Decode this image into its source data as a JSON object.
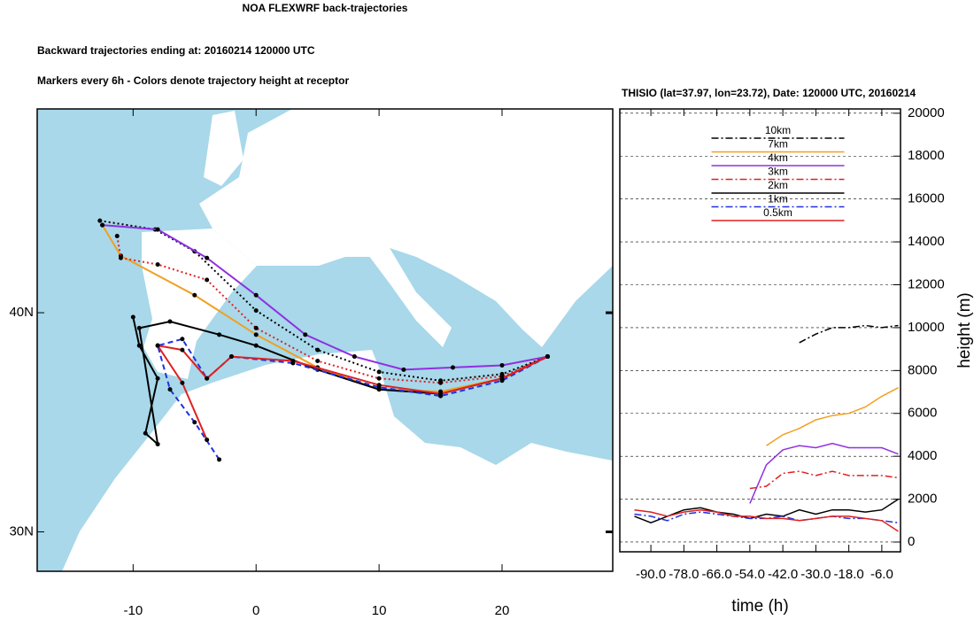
{
  "title": "NOA FLEXWRF back-trajectories",
  "subtitle": "Backward trajectories ending at: 20160214  120000 UTC",
  "note": "Markers every 6h - Colors denote trajectory height at receptor",
  "chart_data": [
    {
      "type": "trajectory-map",
      "xlim": [
        -17.8,
        29
      ],
      "ylim": [
        28.2,
        49.3
      ],
      "xticks": [
        -10,
        0,
        10,
        20
      ],
      "yticks": [
        {
          "value": 30,
          "label": "30N"
        },
        {
          "value": 40,
          "label": "40N"
        }
      ],
      "series": [
        {
          "color": "#000000",
          "dash": "dot",
          "x": [
            -12.7,
            -8.2,
            -5,
            0,
            5,
            10,
            15,
            20,
            23.7
          ],
          "values": [
            44.2,
            43.8,
            42.8,
            40.1,
            38.3,
            37.3,
            36.9,
            37.2,
            38.0
          ]
        },
        {
          "color": "#f0a020",
          "dash": "solid",
          "x": [
            -12.5,
            -11,
            -5,
            0,
            5,
            10,
            15,
            20,
            23.7
          ],
          "values": [
            44.0,
            42.6,
            40.8,
            39.0,
            37.5,
            36.5,
            36.4,
            37.0,
            38.0
          ]
        },
        {
          "color": "#9030e0",
          "dash": "solid",
          "x": [
            -12.5,
            -8,
            -4,
            0,
            4,
            8,
            12,
            16,
            20,
            23.7
          ],
          "values": [
            44.0,
            43.8,
            42.5,
            40.8,
            39.0,
            38.0,
            37.4,
            37.5,
            37.6,
            38.0
          ]
        },
        {
          "color": "#e02020",
          "dash": "dot",
          "x": [
            -11.3,
            -11,
            -8,
            -4,
            0,
            5,
            10,
            15,
            20,
            23.7
          ],
          "values": [
            43.5,
            42.5,
            42.2,
            41.5,
            39.3,
            37.8,
            37.0,
            36.8,
            37.1,
            38.0
          ]
        },
        {
          "color": "#000000",
          "dash": "solid",
          "x": [
            -10,
            -9.5,
            -8,
            -9,
            -8,
            -9.5,
            -7,
            -3,
            0,
            5,
            10,
            15,
            20,
            23.7
          ],
          "values": [
            39.8,
            38.5,
            37.0,
            34.5,
            34.0,
            39.3,
            39.6,
            39.0,
            38.5,
            37.4,
            36.5,
            36.3,
            37.0,
            38.0
          ]
        },
        {
          "color": "#2030e0",
          "dash": "dash",
          "x": [
            -3,
            -5,
            -7,
            -8,
            -6,
            -4,
            -2,
            3,
            10,
            15,
            20,
            23.7
          ],
          "values": [
            33.3,
            35.0,
            36.5,
            38.5,
            38.8,
            37.0,
            38.0,
            37.7,
            36.6,
            36.2,
            36.9,
            38.0
          ]
        },
        {
          "color": "#e02020",
          "dash": "solid",
          "x": [
            -4,
            -6,
            -8,
            -6,
            -4,
            -2,
            3,
            10,
            15,
            20,
            23.7
          ],
          "values": [
            34.2,
            36.8,
            38.5,
            38.3,
            37.0,
            38.0,
            37.8,
            36.7,
            36.3,
            37.0,
            38.0
          ]
        }
      ]
    },
    {
      "type": "line",
      "title": "THISIO (lat=37.97,  lon=23.72), Date: 120000 UTC, 20160214",
      "xlabel": "time (h)",
      "ylabel": "height (m)",
      "x": [
        -96,
        -90,
        -84,
        -78,
        -72,
        -66,
        -60,
        -54,
        -48,
        -42,
        -36,
        -30,
        -24,
        -18,
        -12,
        -6,
        0
      ],
      "xlim": [
        -101.3,
        0.8
      ],
      "xticks": [
        {
          "value": -90,
          "label": "-90.0"
        },
        {
          "value": -78,
          "label": "-78.0"
        },
        {
          "value": -66,
          "label": "-66.0"
        },
        {
          "value": -54,
          "label": "-54.0"
        },
        {
          "value": -42,
          "label": "-42.0"
        },
        {
          "value": -30,
          "label": "-30.0"
        },
        {
          "value": -18,
          "label": "-18.0"
        },
        {
          "value": -6,
          "label": "-6.0"
        }
      ],
      "ylim": [
        -455,
        20200
      ],
      "yticks": [
        0,
        2000,
        4000,
        6000,
        8000,
        10000,
        12000,
        14000,
        16000,
        18000,
        20000
      ],
      "grid": true,
      "legend": "upper center",
      "series": [
        {
          "name": "10km",
          "color": "#000000",
          "dash": "dashdot",
          "values": [
            null,
            null,
            null,
            null,
            null,
            null,
            null,
            null,
            null,
            null,
            9300,
            9700,
            10000,
            10000,
            10100,
            10000,
            10100
          ]
        },
        {
          "name": "7km",
          "color": "#f0a020",
          "dash": "solid",
          "values": [
            null,
            null,
            null,
            null,
            null,
            null,
            null,
            null,
            4500,
            5000,
            5300,
            5700,
            5900,
            6000,
            6300,
            6800,
            7200
          ]
        },
        {
          "name": "4km",
          "color": "#9030e0",
          "dash": "solid",
          "values": [
            null,
            null,
            null,
            null,
            null,
            null,
            null,
            1800,
            3600,
            4300,
            4500,
            4400,
            4600,
            4400,
            4400,
            4400,
            4100
          ]
        },
        {
          "name": "3km",
          "color": "#e02020",
          "dash": "dashdot",
          "values": [
            null,
            null,
            null,
            null,
            null,
            null,
            null,
            2500,
            2600,
            3200,
            3300,
            3100,
            3300,
            3100,
            3100,
            3100,
            3000
          ]
        },
        {
          "name": "2km",
          "color": "#000000",
          "dash": "solid",
          "values": [
            1200,
            900,
            1200,
            1500,
            1600,
            1400,
            1300,
            1100,
            1300,
            1200,
            1500,
            1300,
            1500,
            1500,
            1400,
            1500,
            2000
          ]
        },
        {
          "name": "1km",
          "color": "#2030e0",
          "dash": "dashdot",
          "values": [
            1300,
            1200,
            1000,
            1300,
            1400,
            1300,
            1200,
            1100,
            1100,
            1200,
            1000,
            1100,
            1200,
            1100,
            1100,
            1000,
            900
          ]
        },
        {
          "name": "0.5km",
          "color": "#e02020",
          "dash": "solid",
          "values": [
            1500,
            1400,
            1200,
            1400,
            1500,
            1400,
            1200,
            1200,
            1100,
            1100,
            1000,
            1100,
            1200,
            1200,
            1100,
            1000,
            500
          ]
        }
      ]
    }
  ]
}
